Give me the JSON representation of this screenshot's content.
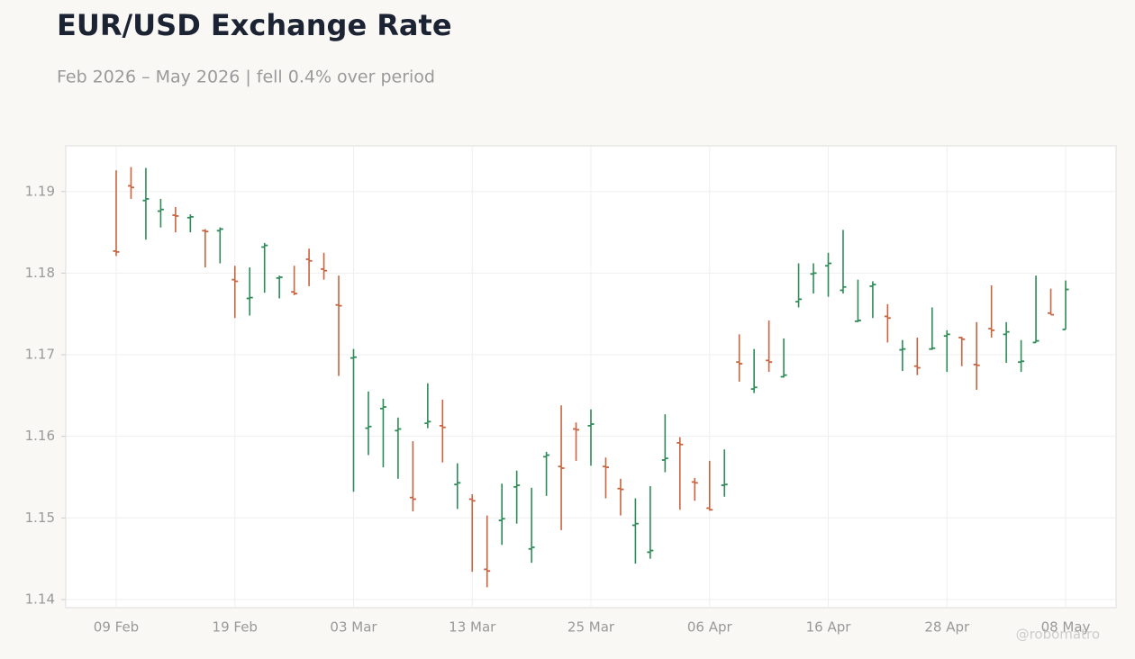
{
  "chart_data": {
    "type": "ohlc",
    "title": "EUR/USD Exchange Rate",
    "subtitle": "Feb 2026 – May 2026 | fell 0.4% over period",
    "watermark": "@robomatro",
    "up_color": "#2e8b57",
    "down_color": "#c8643f",
    "grid": true,
    "ylim": [
      1.139,
      1.1956
    ],
    "yticks": [
      1.14,
      1.15,
      1.16,
      1.17,
      1.18,
      1.19
    ],
    "categories": [
      "09 Feb",
      null,
      null,
      null,
      null,
      null,
      null,
      null,
      "19 Feb",
      null,
      null,
      null,
      null,
      null,
      null,
      null,
      "03 Mar",
      null,
      null,
      null,
      null,
      null,
      null,
      null,
      "13 Mar",
      null,
      null,
      null,
      null,
      null,
      null,
      null,
      "25 Mar",
      null,
      null,
      null,
      null,
      null,
      null,
      null,
      "06 Apr",
      null,
      null,
      null,
      null,
      null,
      null,
      null,
      "16 Apr",
      null,
      null,
      null,
      null,
      null,
      null,
      null,
      "28 Apr",
      null,
      null,
      null,
      null,
      null,
      null,
      null,
      "08 May"
    ],
    "open": [
      1.1827,
      1.1907,
      1.1889,
      1.1876,
      1.1871,
      1.1868,
      1.1852,
      1.1852,
      1.1792,
      1.1769,
      1.1832,
      1.1794,
      1.1777,
      1.1817,
      1.1805,
      1.1761,
      1.1696,
      1.161,
      1.1634,
      1.1607,
      1.1525,
      1.1616,
      1.1613,
      1.1541,
      1.1523,
      1.1437,
      1.1497,
      1.1538,
      1.1462,
      1.1575,
      1.1563,
      1.1609,
      1.1613,
      1.1563,
      1.1536,
      1.1491,
      1.1458,
      1.1571,
      1.1592,
      1.1544,
      1.1512,
      1.154,
      1.1691,
      1.1658,
      1.1693,
      1.1673,
      1.1765,
      1.1799,
      1.1809,
      1.1779,
      1.1741,
      1.1784,
      1.1747,
      1.1706,
      1.1686,
      1.1707,
      1.1723,
      1.1721,
      1.1688,
      1.1732,
      1.1725,
      1.1691,
      1.1715,
      1.1751,
      1.1731
    ],
    "high": [
      1.1926,
      1.193,
      1.1929,
      1.1891,
      1.1881,
      1.1872,
      1.1854,
      1.1856,
      1.1809,
      1.1807,
      1.1837,
      1.1797,
      1.1809,
      1.183,
      1.1825,
      1.1797,
      1.1707,
      1.1655,
      1.1646,
      1.1623,
      1.1594,
      1.1665,
      1.1645,
      1.1567,
      1.1529,
      1.1503,
      1.1542,
      1.1558,
      1.1537,
      1.1581,
      1.1638,
      1.1617,
      1.1633,
      1.1574,
      1.1548,
      1.1524,
      1.1539,
      1.1627,
      1.1599,
      1.1549,
      1.157,
      1.1584,
      1.1725,
      1.1707,
      1.1742,
      1.172,
      1.1812,
      1.1812,
      1.1825,
      1.1853,
      1.1792,
      1.179,
      1.1762,
      1.1718,
      1.1721,
      1.1758,
      1.173,
      1.1722,
      1.174,
      1.1785,
      1.174,
      1.1718,
      1.1797,
      1.1781,
      1.1791
    ],
    "low": [
      1.1821,
      1.1891,
      1.1841,
      1.1856,
      1.185,
      1.185,
      1.1807,
      1.1812,
      1.1745,
      1.1748,
      1.1776,
      1.1769,
      1.1773,
      1.1784,
      1.1792,
      1.1674,
      1.1532,
      1.1577,
      1.1562,
      1.1548,
      1.1508,
      1.161,
      1.1568,
      1.1511,
      1.1434,
      1.1415,
      1.1467,
      1.1493,
      1.1445,
      1.1527,
      1.1485,
      1.157,
      1.1564,
      1.1524,
      1.1503,
      1.1444,
      1.145,
      1.1556,
      1.151,
      1.1521,
      1.1509,
      1.1526,
      1.1667,
      1.1653,
      1.1679,
      1.1672,
      1.1758,
      1.1775,
      1.1771,
      1.1775,
      1.174,
      1.1745,
      1.1715,
      1.168,
      1.1675,
      1.1706,
      1.1679,
      1.1686,
      1.1657,
      1.1721,
      1.169,
      1.1679,
      1.1715,
      1.1749,
      1.1731
    ],
    "close": [
      1.1826,
      1.1905,
      1.1891,
      1.1878,
      1.187,
      1.1869,
      1.1851,
      1.1854,
      1.179,
      1.177,
      1.1834,
      1.1795,
      1.1775,
      1.1815,
      1.1803,
      1.176,
      1.1697,
      1.1612,
      1.1636,
      1.1609,
      1.1523,
      1.1618,
      1.1611,
      1.1543,
      1.1521,
      1.1435,
      1.1499,
      1.154,
      1.1464,
      1.1577,
      1.1561,
      1.1608,
      1.1615,
      1.1562,
      1.1535,
      1.1493,
      1.146,
      1.1573,
      1.159,
      1.1543,
      1.151,
      1.1541,
      1.1689,
      1.166,
      1.1691,
      1.1675,
      1.1768,
      1.18,
      1.1812,
      1.1783,
      1.1742,
      1.1786,
      1.1745,
      1.1707,
      1.1684,
      1.1708,
      1.1725,
      1.1719,
      1.1687,
      1.173,
      1.1728,
      1.1692,
      1.1717,
      1.1749,
      1.178
    ]
  }
}
